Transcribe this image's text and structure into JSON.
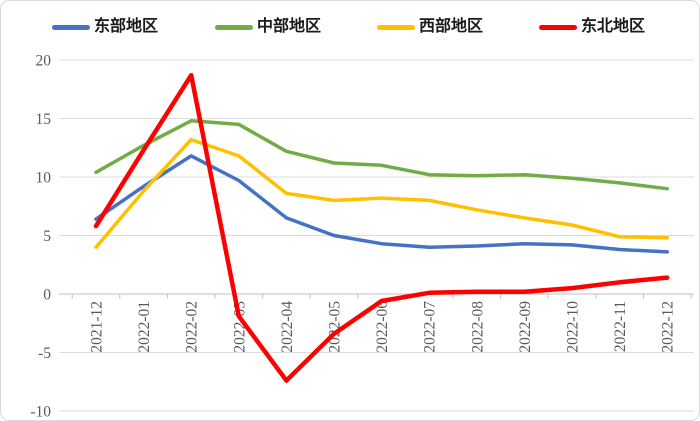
{
  "chart_data": {
    "type": "line",
    "x_labels": [
      "2021-12",
      "2022-01",
      "2022-02",
      "2022-03",
      "2022-04",
      "2022-05",
      "2022-06",
      "2022-07",
      "2022-08",
      "2022-09",
      "2022-10",
      "2022-11",
      "2022-12"
    ],
    "series": [
      {
        "name": "东部地区",
        "color": "#4472C4",
        "values": [
          6.4,
          9.2,
          11.8,
          9.7,
          6.5,
          5.0,
          4.3,
          4.0,
          4.1,
          4.3,
          4.2,
          3.8,
          3.6
        ]
      },
      {
        "name": "中部地区",
        "color": "#70AD47",
        "values": [
          10.4,
          12.7,
          14.8,
          14.5,
          12.2,
          11.2,
          11.0,
          10.2,
          10.1,
          10.2,
          9.9,
          9.5,
          9.0
        ]
      },
      {
        "name": "西部地区",
        "color": "#FFC000",
        "values": [
          4.0,
          8.8,
          13.2,
          11.8,
          8.6,
          8.0,
          8.2,
          8.0,
          7.2,
          6.5,
          5.9,
          4.9,
          4.8
        ]
      },
      {
        "name": "东北地区",
        "color": "#FF0000",
        "values": [
          5.8,
          12.3,
          18.7,
          -1.9,
          -7.4,
          -3.4,
          -0.6,
          0.1,
          0.2,
          0.2,
          0.5,
          1.0,
          1.4
        ]
      }
    ],
    "y_ticks": [
      20,
      15,
      10,
      5,
      0,
      -5,
      -10
    ],
    "ylim": [
      -10,
      20
    ],
    "grid": true,
    "legend_position": "top",
    "gridline_color": "#DCDCDC",
    "axis_color": "#BFBFBF",
    "label_color": "#595959"
  }
}
